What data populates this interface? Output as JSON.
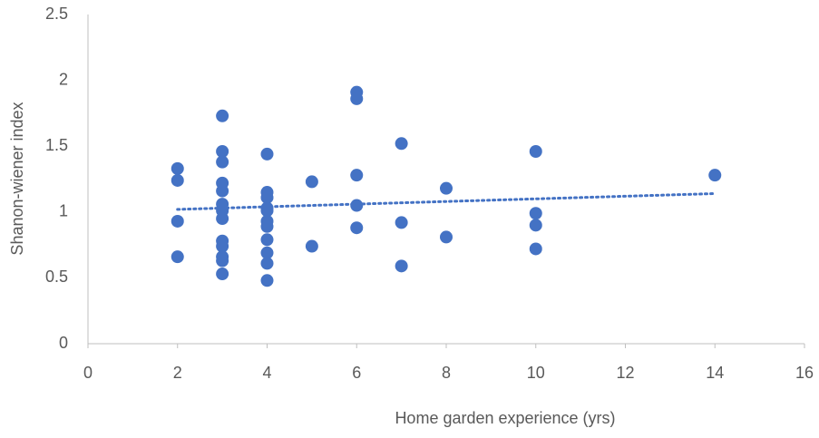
{
  "chart_data": {
    "type": "scatter",
    "x_label": "Home garden experience (yrs)",
    "y_label": "Shanon-wiener index",
    "color": "#4472c4",
    "x": [
      2,
      2,
      2,
      2,
      3,
      3,
      3,
      3,
      3,
      3,
      3,
      3,
      3,
      3,
      3,
      3,
      3,
      4,
      4,
      4,
      4,
      4,
      4,
      4,
      4,
      4,
      4,
      4,
      5,
      5,
      6,
      6,
      6,
      6,
      6,
      7,
      7,
      7,
      8,
      8,
      10,
      10,
      10,
      10,
      14
    ],
    "values": [
      1.33,
      1.24,
      0.93,
      0.66,
      1.73,
      1.46,
      1.38,
      1.22,
      1.16,
      1.06,
      1.01,
      0.95,
      0.78,
      0.74,
      0.66,
      0.63,
      0.53,
      1.44,
      1.15,
      1.11,
      1.03,
      1.01,
      0.93,
      0.89,
      0.79,
      0.69,
      0.61,
      0.48,
      1.23,
      0.74,
      1.91,
      1.86,
      1.28,
      1.05,
      0.88,
      1.52,
      0.92,
      0.59,
      1.18,
      0.81,
      1.46,
      0.99,
      0.9,
      0.72,
      1.28
    ],
    "trendline": {
      "style": "dotted",
      "x": [
        2,
        14
      ],
      "values": [
        1.02,
        1.14
      ]
    },
    "xlim": [
      0,
      16
    ],
    "xticks": [
      0,
      2,
      4,
      6,
      8,
      10,
      12,
      14,
      16
    ],
    "ylim": [
      0,
      2.5
    ],
    "yticks": [
      0,
      0.5,
      1,
      1.5,
      2,
      2.5
    ],
    "grid": false
  }
}
